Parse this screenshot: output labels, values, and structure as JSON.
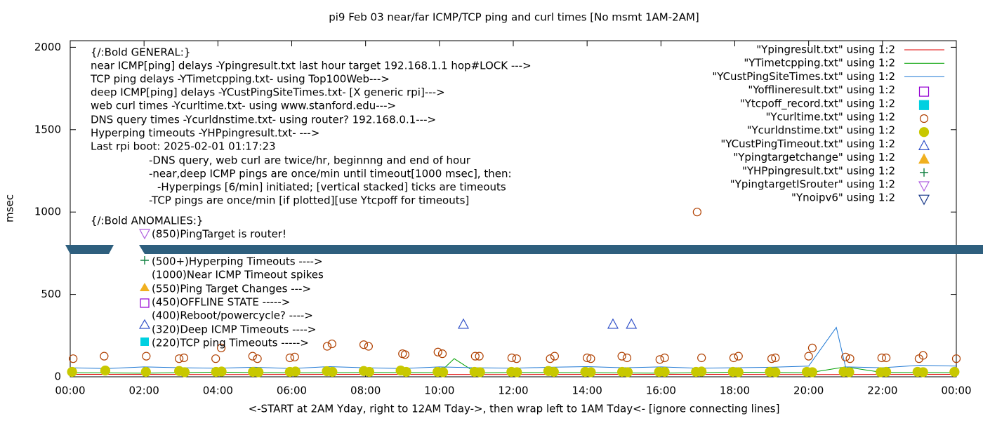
{
  "chart_data": {
    "type": "line",
    "title": "pi9 Feb 03  near/far ICMP/TCP ping and curl times [No msmt 1AM-2AM]",
    "xlabel": "<-START at 2AM Yday, right to 12AM Tday->, then wrap left to 1AM Tday<- [ignore connecting lines]",
    "ylabel": "msec",
    "xlim": [
      0,
      24
    ],
    "ylim": [
      0,
      2040
    ],
    "xticks": [
      {
        "value": 0,
        "label": "00:00"
      },
      {
        "value": 2,
        "label": "02:00"
      },
      {
        "value": 4,
        "label": "04:00"
      },
      {
        "value": 6,
        "label": "06:00"
      },
      {
        "value": 8,
        "label": "08:00"
      },
      {
        "value": 10,
        "label": "10:00"
      },
      {
        "value": 12,
        "label": "12:00"
      },
      {
        "value": 14,
        "label": "14:00"
      },
      {
        "value": 16,
        "label": "16:00"
      },
      {
        "value": 18,
        "label": "18:00"
      },
      {
        "value": 20,
        "label": "20:00"
      },
      {
        "value": 22,
        "label": "22:00"
      },
      {
        "value": 24,
        "label": "00:00"
      }
    ],
    "yticks": [
      0,
      500,
      1000,
      1500,
      2000
    ],
    "annotations": [
      "{/:Bold GENERAL:}",
      "near ICMP[ping] delays -Ypingresult.txt last hour target 192.168.1.1 hop#LOCK --->",
      "TCP ping delays -YTimetcpping.txt- using Top100Web--->",
      "deep ICMP[ping] delays -YCustPingSiteTimes.txt- [X generic rpi]--->",
      "web curl times -Ycurltime.txt- using www.stanford.edu--->",
      "DNS query times -Ycurldnstime.txt- using router? 192.168.0.1--->",
      "Hyperping timeouts -YHPpingresult.txt- --->",
      "Last rpi boot: 2025-02-01 01:17:23",
      "-DNS query, web curl are twice/hr, beginnng and end of hour",
      "-near,deep ICMP pings are once/min until timeout[1000 msec], then:",
      "-Hyperpings [6/min] initiated; [vertical stacked] ticks are timeouts",
      "-TCP pings are once/min [if plotted][use Ytcpoff for timeouts]",
      "{/:Bold ANOMALIES:}",
      "(850)PingTarget is router!",
      "(500+)Hyperping Timeouts ---->",
      "(1000)Near ICMP Timeout spikes",
      "(550)Ping Target Changes --->",
      "(450)OFFLINE STATE ----->",
      "(400)Reboot/powercycle? ---->",
      "(320)Deep ICMP Timeouts ---->",
      "(220)TCP ping Timeouts ----->"
    ],
    "series": [
      {
        "name": "\"Ypingresult.txt\" using 1:2",
        "color": "#e00000",
        "style": "line",
        "x": [
          0,
          4,
          8,
          12,
          16,
          20,
          24
        ],
        "values": [
          15,
          14,
          15,
          14,
          15,
          14,
          15
        ]
      },
      {
        "name": "\"YTimetcpping.txt\" using 1:2",
        "color": "#00a000",
        "style": "line",
        "x": [
          0,
          2,
          4,
          6,
          8,
          10,
          10.4,
          11,
          12,
          14,
          16,
          18,
          20,
          21,
          22,
          24
        ],
        "values": [
          25,
          22,
          28,
          24,
          26,
          25,
          110,
          24,
          26,
          25,
          22,
          28,
          24,
          60,
          26,
          25
        ]
      },
      {
        "name": "\"YCustPingSiteTimes.txt\" using 1:2",
        "color": "#1f78d4",
        "style": "line",
        "x": [
          0,
          1,
          2,
          3,
          4,
          5,
          6,
          7,
          8,
          9,
          10,
          11,
          12,
          13,
          14,
          15,
          16,
          17,
          18,
          19,
          20,
          20.75,
          21,
          22,
          23,
          24
        ],
        "values": [
          55,
          50,
          60,
          55,
          52,
          58,
          50,
          62,
          55,
          50,
          60,
          55,
          52,
          58,
          62,
          55,
          60,
          52,
          55,
          58,
          65,
          300,
          60,
          55,
          70,
          65
        ]
      },
      {
        "name": "\"Yofflineresult.txt\" using 1:2",
        "color": "#9400d3",
        "style": "square-open",
        "x": [],
        "values": []
      },
      {
        "name": "\"Ytcpoff_record.txt\" using 1:2",
        "color": "#00d0e0",
        "style": "square",
        "x": [],
        "values": []
      },
      {
        "name": "\"Ycurltime.txt\" using 1:2",
        "color": "#b04000",
        "style": "circle-open",
        "x": [
          0.08,
          0.92,
          2.06,
          2.95,
          3.08,
          3.94,
          4.09,
          4.94,
          5.07,
          5.95,
          6.08,
          6.96,
          7.09,
          7.95,
          8.08,
          9.0,
          9.07,
          9.96,
          10.08,
          10.97,
          11.08,
          11.96,
          12.09,
          13.0,
          13.12,
          14.0,
          14.1,
          14.94,
          15.08,
          15.97,
          16.1,
          16.98,
          17.1,
          17.97,
          18.1,
          19.0,
          19.1,
          20.0,
          20.1,
          21.0,
          21.12,
          21.98,
          22.1,
          22.99,
          23.1,
          24.0
        ],
        "values": [
          110,
          125,
          125,
          110,
          115,
          110,
          175,
          125,
          110,
          115,
          120,
          185,
          200,
          195,
          185,
          140,
          135,
          150,
          140,
          125,
          125,
          115,
          110,
          110,
          125,
          115,
          110,
          125,
          115,
          105,
          115,
          1000,
          115,
          115,
          125,
          110,
          115,
          125,
          175,
          120,
          110,
          115,
          115,
          110,
          130,
          110
        ]
      },
      {
        "name": "\"Ycurldnstime.txt\" using 1:2",
        "color": "#c8c800",
        "style": "circle",
        "x": [
          0.05,
          0.95,
          2.05,
          2.95,
          3.1,
          3.95,
          4.1,
          4.95,
          5.1,
          5.95,
          6.1,
          6.95,
          7.1,
          7.95,
          8.1,
          8.95,
          9.1,
          9.95,
          10.1,
          10.95,
          11.1,
          11.95,
          12.1,
          12.95,
          13.1,
          13.95,
          14.1,
          14.95,
          15.1,
          15.95,
          16.1,
          16.95,
          17.1,
          17.95,
          18.1,
          18.95,
          19.1,
          19.95,
          20.1,
          20.95,
          21.1,
          21.95,
          22.1,
          22.95,
          23.1,
          23.95
        ],
        "values": [
          30,
          38,
          30,
          35,
          28,
          30,
          32,
          30,
          28,
          30,
          32,
          34,
          30,
          35,
          30,
          38,
          30,
          30,
          28,
          30,
          28,
          30,
          28,
          35,
          30,
          30,
          28,
          30,
          28,
          30,
          30,
          30,
          32,
          30,
          28,
          30,
          28,
          30,
          28,
          30,
          28,
          28,
          30,
          30,
          28,
          30
        ]
      },
      {
        "name": "\"YCustPingTimeout.txt\" using 1:2",
        "color": "#3050c8",
        "style": "triangle-open",
        "x": [
          10.65,
          14.7,
          15.2
        ],
        "values": [
          320,
          320,
          320
        ]
      },
      {
        "name": "\"Ypingtargetchange\" using 1:2",
        "color": "#f0b020",
        "style": "triangle",
        "x": [],
        "values": []
      },
      {
        "name": "\"YHPpingresult.txt\" using 1:2",
        "color": "#108040",
        "style": "plus",
        "x": [],
        "values": []
      },
      {
        "name": "\"YpingtargetISrouter\" using 1:2",
        "color": "#b060e0",
        "style": "invtriangle-open",
        "x": [],
        "values": []
      },
      {
        "name": "\"Ynoipv6\" using 1:2",
        "color": "#1a3a8a",
        "style": "invtriangle-open",
        "x": [],
        "values": []
      }
    ]
  }
}
